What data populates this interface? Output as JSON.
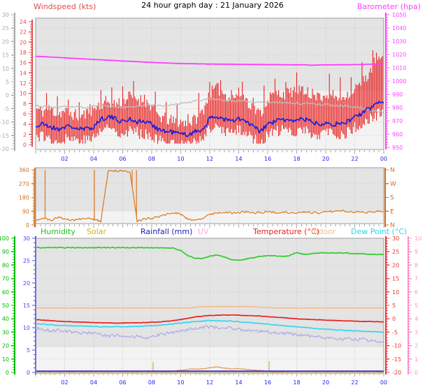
{
  "title": "24 hour graph day : 21 January 2026",
  "x_labels": [
    "02",
    "04",
    "06",
    "08",
    "10",
    "12",
    "14",
    "16",
    "18",
    "20",
    "22",
    "00"
  ],
  "x_label_color": "#2222EE",
  "chart_data": [
    {
      "id": "wind-barometer",
      "type": "line",
      "title_left": "Windspeed (kts)",
      "title_right": "Barometer (hpa)",
      "x_hours_step": 0.5,
      "axes": [
        {
          "id": "windchill-scale-c",
          "side": "left-outer",
          "color": "#ABABAB",
          "ticks": [
            30,
            25,
            20,
            15,
            10,
            5,
            0,
            -5,
            -10,
            -15,
            -20
          ]
        },
        {
          "id": "windspeed-kts",
          "side": "left-inner",
          "color": "#E24C4C",
          "ticks": [
            24,
            22,
            20,
            18,
            16,
            14,
            12,
            10,
            8,
            6,
            4,
            2,
            0
          ]
        },
        {
          "id": "barometer-hpa",
          "side": "right",
          "color": "#FF40FF",
          "ticks": [
            1050,
            1040,
            1030,
            1020,
            1010,
            1000,
            990,
            980,
            970,
            960,
            950
          ]
        }
      ],
      "series": [
        {
          "name": "windspeed_gust_kts",
          "style": "bars",
          "color": "#E82020",
          "unit": "kts",
          "values": [
            7,
            6.5,
            7,
            6,
            6.5,
            6,
            5.5,
            6,
            7,
            8,
            8.5,
            8,
            8.5,
            9.5,
            9,
            8.5,
            7.5,
            5.5,
            5,
            4.5,
            4.5,
            4,
            5,
            6.5,
            10,
            11,
            10,
            9,
            10,
            9,
            7,
            6,
            9,
            10,
            10,
            10,
            11,
            10,
            10,
            9,
            10,
            9.5,
            9,
            10,
            11,
            12,
            14,
            17,
            16
          ]
        },
        {
          "name": "windspeed_avg_kts",
          "style": "line",
          "color": "#2020D8",
          "unit": "kts",
          "values": [
            3.5,
            4,
            3.5,
            3,
            3.5,
            3.5,
            3,
            3,
            3.5,
            5,
            5.5,
            5,
            4.5,
            5,
            4.5,
            4.5,
            4,
            3,
            2.5,
            2.5,
            2,
            2,
            2.5,
            3,
            5,
            5.5,
            5,
            4.5,
            5,
            4.5,
            3.5,
            2.5,
            4,
            4.5,
            5,
            4.5,
            5,
            5,
            4.5,
            4,
            4.5,
            4,
            4,
            4.5,
            5.5,
            6,
            7,
            8,
            8.5
          ]
        },
        {
          "name": "wind_chill_top_c",
          "style": "line",
          "color": "#BEBEBE",
          "unit": "°C",
          "values": [
            -4,
            -4.2,
            -4.4,
            -4.6,
            -4.4,
            -4.2,
            -4.5,
            -4.7,
            -4.3,
            -4,
            -4.2,
            -4.4,
            -4.6,
            -4.4,
            -4.1,
            -3.9,
            -3.6,
            -3.7,
            -3.9,
            -3.6,
            -3.1,
            -2.6,
            -2.1,
            -1.6,
            -1.4,
            -1.6,
            -1.9,
            -2.1,
            -2,
            -2.2,
            -2.4,
            -2.6,
            -2.7,
            -2.6,
            -2.7,
            -2.9,
            -3,
            -3.1,
            -3.2,
            -3.4,
            -3.5,
            -3.7,
            -3.9,
            -4.1,
            -4.4,
            -4.8,
            -5.4,
            -6,
            -6.5
          ]
        },
        {
          "name": "barometer_hpa",
          "style": "line",
          "color": "#FF3CFF",
          "unit": "hpa",
          "values": [
            1018.6,
            1018.4,
            1018.1,
            1017.8,
            1017.5,
            1017.2,
            1016.9,
            1016.6,
            1016.3,
            1016,
            1015.7,
            1015.4,
            1015.1,
            1014.9,
            1014.6,
            1014.3,
            1014.1,
            1013.8,
            1013.6,
            1013.4,
            1013.2,
            1013.1,
            1013,
            1012.9,
            1012.8,
            1012.8,
            1012.7,
            1012.7,
            1012.6,
            1012.6,
            1012.5,
            1012.5,
            1012.4,
            1012.4,
            1012.3,
            1012.3,
            1012.2,
            1012.3,
            1011.9,
            1012.1,
            1012.2,
            1012.2,
            1012.3,
            1012.3,
            1012.4,
            1012.5,
            1012.7,
            1012.8,
            1013
          ]
        }
      ]
    },
    {
      "id": "wind-direction",
      "type": "line",
      "x_hours_step": 0.5,
      "axes": [
        {
          "id": "direction-degrees",
          "side": "left",
          "color": "#D2701E",
          "ticks": [
            360,
            270,
            180,
            90,
            0
          ]
        },
        {
          "id": "direction-compass",
          "side": "right",
          "color": "#D2701E",
          "ticks": [
            "N",
            "W",
            "S",
            "E",
            "N"
          ],
          "tick_degrees": [
            360,
            270,
            180,
            90,
            0
          ]
        }
      ],
      "series": [
        {
          "name": "wind_direction_deg",
          "style": "line",
          "color": "#DD7718",
          "unit": "degrees",
          "values": [
            35,
            45,
            30,
            50,
            40,
            30,
            38,
            45,
            35,
            25,
            352,
            355,
            356,
            350,
            22,
            40,
            45,
            55,
            70,
            80,
            70,
            40,
            30,
            40,
            70,
            80,
            85,
            78,
            82,
            85,
            80,
            82,
            85,
            80,
            85,
            82,
            80,
            85,
            82,
            80,
            85,
            90,
            95,
            90,
            85,
            90,
            80,
            88,
            90
          ],
          "spikes_h": [
            0.65,
            4.05,
            6.65,
            6.95
          ]
        }
      ]
    },
    {
      "id": "climate",
      "type": "line",
      "x_hours_step": 0.5,
      "legend": [
        {
          "label": "Humidity",
          "color": "#1FC11F"
        },
        {
          "label": "Solar",
          "color": "#C8B414"
        },
        {
          "label": "Rainfall (mm)",
          "color": "#2020B8"
        },
        {
          "label": "UV",
          "color": "#FFA8D8"
        },
        {
          "label": "Temperature (°C)",
          "color": "#E82020"
        },
        {
          "label": "Indoor",
          "color": "#EFC08C"
        },
        {
          "label": "Dew Point (°C)",
          "color": "#2FD4E8"
        }
      ],
      "axes": [
        {
          "id": "humidity-pct",
          "side": "left-outer",
          "color": "#00BB00",
          "ticks": [
            100,
            90,
            80,
            70,
            60,
            50,
            40,
            30,
            20,
            10,
            0
          ]
        },
        {
          "id": "rainfall-mm",
          "side": "left-inner",
          "color": "#4646FF",
          "ticks": [
            30,
            25,
            20,
            15,
            10,
            5,
            0
          ]
        },
        {
          "id": "temperature-c",
          "side": "right-inner",
          "color": "#F03030",
          "ticks": [
            30,
            25,
            20,
            15,
            10,
            5,
            0,
            -5,
            -10,
            -15,
            -20
          ]
        },
        {
          "id": "uv-index",
          "side": "right-outer",
          "color": "#FF8FD0",
          "ticks": [
            10,
            9,
            8,
            7,
            6,
            5,
            4,
            3,
            2,
            1,
            0
          ]
        }
      ],
      "series": [
        {
          "name": "humidity_pct",
          "style": "line",
          "color": "#2ECC2E",
          "unit": "%",
          "values": [
            93,
            93,
            93,
            93,
            93,
            93,
            93,
            93,
            93,
            93,
            93,
            93,
            93,
            93,
            93,
            93,
            93,
            93,
            93,
            92.5,
            91,
            87,
            85,
            85,
            86.5,
            87.5,
            86,
            84,
            83.5,
            84.5,
            85.5,
            86.5,
            87,
            87,
            86.5,
            87,
            89.5,
            88,
            88.5,
            89,
            89,
            89,
            89,
            89,
            88.5,
            88.5,
            88,
            88,
            88
          ]
        },
        {
          "name": "indoor_humidity_pct",
          "style": "line",
          "color": "#F4BE90",
          "unit": "%",
          "values": [
            48,
            48,
            48,
            48,
            48,
            48,
            48,
            48,
            48,
            48,
            48,
            48,
            48,
            48,
            48,
            48,
            48,
            48,
            48,
            48,
            48,
            48,
            48.5,
            49,
            49,
            49,
            49,
            49,
            49,
            49,
            49,
            48.5,
            48.5,
            48,
            48,
            48,
            48,
            48,
            48,
            48,
            48,
            48,
            48,
            48,
            48,
            48,
            48,
            48,
            48
          ]
        },
        {
          "name": "temperature_c",
          "style": "line",
          "color": "#E82020",
          "unit": "°C",
          "values": [
            -0.3,
            -0.5,
            -0.7,
            -0.9,
            -1,
            -1.1,
            -1.2,
            -1.3,
            -1.4,
            -1.5,
            -1.5,
            -1.6,
            -1.6,
            -1.5,
            -1.5,
            -1.4,
            -1.3,
            -1.2,
            -1,
            -0.7,
            -0.3,
            0.2,
            0.7,
            1,
            1.2,
            1.3,
            1.4,
            1.4,
            1.3,
            1.2,
            1.1,
            1,
            0.8,
            0.6,
            0.4,
            0.2,
            0,
            -0.1,
            -0.3,
            -0.4,
            -0.5,
            -0.6,
            -0.7,
            -0.8,
            -0.9,
            -1,
            -1,
            -1.1,
            -1.2
          ]
        },
        {
          "name": "dew_point_c",
          "style": "line",
          "color": "#33D6F2",
          "unit": "°C",
          "values": [
            -1.8,
            -2,
            -2.2,
            -2.4,
            -2.5,
            -2.6,
            -2.7,
            -2.8,
            -2.9,
            -3,
            -3,
            -3,
            -3,
            -2.9,
            -2.8,
            -2.7,
            -2.6,
            -2.4,
            -2.2,
            -1.9,
            -1.6,
            -1.3,
            -1,
            -0.8,
            -0.7,
            -0.7,
            -0.8,
            -0.9,
            -1.1,
            -1.3,
            -1.5,
            -1.8,
            -2,
            -2.3,
            -2.5,
            -2.8,
            -3,
            -3.3,
            -3.5,
            -3.7,
            -3.9,
            -4.1,
            -4.3,
            -4.4,
            -4.5,
            -4.6,
            -4.7,
            -4.8,
            -5
          ]
        },
        {
          "name": "wind_chill_c",
          "style": "line",
          "color": "#A9A9E8",
          "unit": "°C",
          "values": [
            -3.5,
            -4,
            -4.5,
            -4.2,
            -4.6,
            -5,
            -5.5,
            -5.2,
            -5.6,
            -6,
            -6.4,
            -6,
            -6.6,
            -7,
            -6.5,
            -7,
            -6.6,
            -6,
            -5.5,
            -5,
            -4.5,
            -4,
            -3.6,
            -3.2,
            -3,
            -3.4,
            -3.1,
            -3.5,
            -4,
            -4.1,
            -4.5,
            -4.6,
            -5,
            -5.1,
            -5.5,
            -5.6,
            -6,
            -6.1,
            -6.5,
            -6.6,
            -7,
            -7.1,
            -7.4,
            -7.5,
            -7.9,
            -7.6,
            -8,
            -8.3,
            -8.5
          ]
        },
        {
          "name": "solar_wm2",
          "style": "line",
          "color": "#E8A048",
          "unit": "W/m2",
          "values": [
            0,
            0,
            0,
            0,
            0,
            0,
            0,
            0,
            0,
            0,
            0,
            0,
            0,
            0,
            0,
            0,
            0,
            0,
            3,
            6,
            10,
            14,
            16,
            15,
            20,
            25,
            20,
            16,
            18,
            14,
            10,
            8,
            5,
            3,
            1,
            0,
            0,
            0,
            0,
            0,
            0,
            0,
            0,
            0,
            0,
            0,
            0,
            0,
            0
          ],
          "spikes": [
            {
              "t": 8.1,
              "v": 46
            },
            {
              "t": 16.1,
              "v": 50
            }
          ]
        },
        {
          "name": "rainfall_mm",
          "style": "line",
          "color": "#4B2DC0",
          "unit": "mm",
          "values": [
            0,
            0,
            0,
            0,
            0,
            0,
            0,
            0,
            0,
            0,
            0,
            0,
            0,
            0,
            0,
            0,
            0,
            0,
            0,
            0,
            0,
            0,
            0,
            0,
            0,
            0,
            0,
            0,
            0,
            0,
            0,
            0,
            0,
            0,
            0,
            0,
            0,
            0,
            0,
            0,
            0,
            0,
            0,
            0,
            0,
            0,
            0,
            0,
            0
          ]
        },
        {
          "name": "uv_index",
          "style": "line",
          "color": "#FF9FD7",
          "unit": "uv",
          "values": [
            0,
            0,
            0,
            0,
            0,
            0,
            0,
            0,
            0,
            0,
            0,
            0,
            0,
            0,
            0,
            0,
            0,
            0,
            0,
            0,
            0,
            0,
            0,
            0,
            0,
            0,
            0,
            0,
            0,
            0,
            0,
            0,
            0,
            0,
            0,
            0,
            0,
            0,
            0,
            0,
            0,
            0,
            0,
            0,
            0,
            0,
            0,
            0,
            0
          ]
        }
      ]
    }
  ]
}
